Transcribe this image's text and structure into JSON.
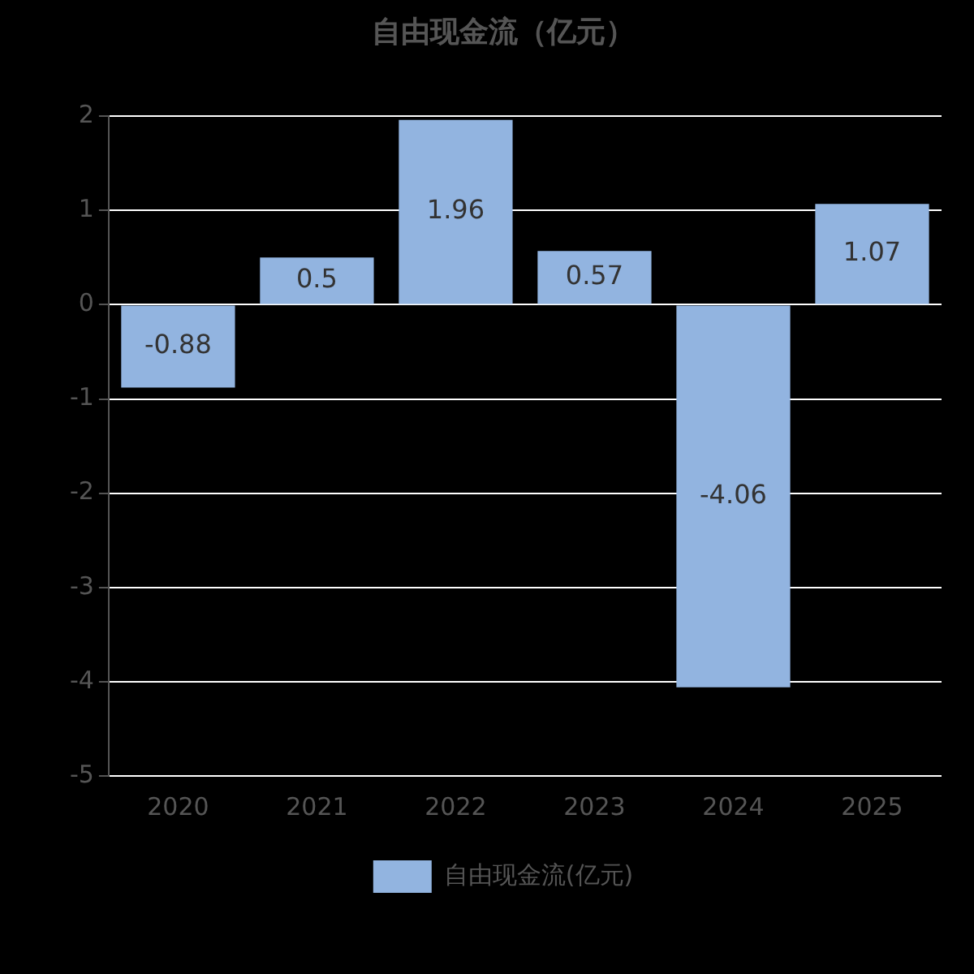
{
  "chart_data": {
    "type": "bar",
    "title": "自由现金流（亿元）",
    "categories": [
      "2020",
      "2021",
      "2022",
      "2023",
      "2024",
      "2025"
    ],
    "series": [
      {
        "name": "自由现金流(亿元)",
        "color": "#92b4e0",
        "values": [
          -0.88,
          0.5,
          1.96,
          0.57,
          -4.06,
          1.07
        ]
      }
    ],
    "ylim": [
      -5,
      2
    ],
    "yticks": [
      -5,
      -4,
      -3,
      -2,
      -1,
      0,
      1,
      2
    ],
    "grid": "y",
    "legend": "bottom",
    "data_labels": true
  }
}
